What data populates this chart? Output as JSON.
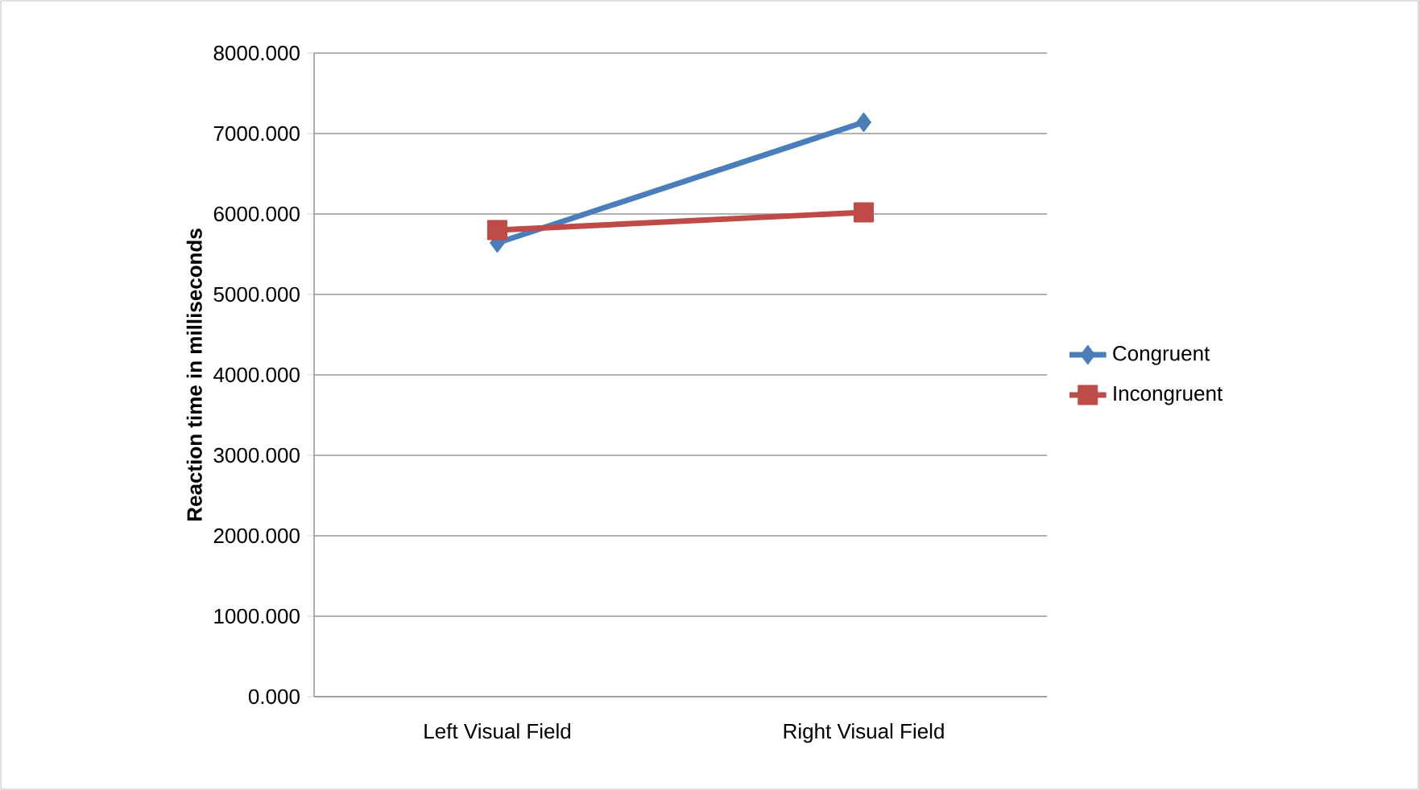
{
  "chart_data": {
    "type": "line",
    "ylabel": "Reaction time in milliseconds",
    "categories": [
      "Left Visual Field",
      "Right Visual Field"
    ],
    "series": [
      {
        "name": "Congruent",
        "color": "#4a7ebb",
        "marker": "diamond",
        "values": [
          5640,
          7140
        ]
      },
      {
        "name": "Incongruent",
        "color": "#be4b48",
        "marker": "square",
        "values": [
          5800,
          6020
        ]
      }
    ],
    "ylim": [
      0,
      8000
    ],
    "yticks": [
      {
        "value": 0,
        "label": "0.000"
      },
      {
        "value": 1000,
        "label": "1000.000"
      },
      {
        "value": 2000,
        "label": "2000.000"
      },
      {
        "value": 3000,
        "label": "3000.000"
      },
      {
        "value": 4000,
        "label": "4000.000"
      },
      {
        "value": 5000,
        "label": "5000.000"
      },
      {
        "value": 6000,
        "label": "6000.000"
      },
      {
        "value": 7000,
        "label": "7000.000"
      },
      {
        "value": 8000,
        "label": "8000.000"
      }
    ],
    "grid": "y",
    "legend": "right",
    "line_style": "solid"
  }
}
